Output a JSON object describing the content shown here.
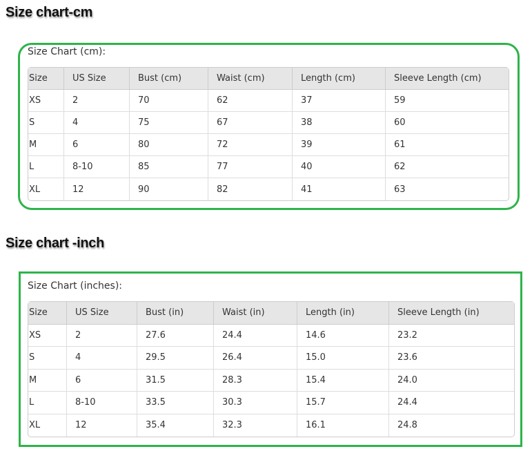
{
  "cm": {
    "heading": "Size chart-cm",
    "caption": "Size Chart (cm):",
    "headers": [
      "Size",
      "US Size",
      "Bust (cm)",
      "Waist (cm)",
      "Length (cm)",
      "Sleeve Length (cm)"
    ],
    "rows": [
      [
        "XS",
        "2",
        "70",
        "62",
        "37",
        "59"
      ],
      [
        "S",
        "4",
        "75",
        "67",
        "38",
        "60"
      ],
      [
        "M",
        "6",
        "80",
        "72",
        "39",
        "61"
      ],
      [
        "L",
        "8-10",
        "85",
        "77",
        "40",
        "62"
      ],
      [
        "XL",
        "12",
        "90",
        "82",
        "41",
        "63"
      ]
    ]
  },
  "inch": {
    "heading": "Size chart -inch",
    "caption": "Size Chart (inches):",
    "headers": [
      "Size",
      "US Size",
      "Bust (in)",
      "Waist (in)",
      "Length (in)",
      "Sleeve Length (in)"
    ],
    "rows": [
      [
        "XS",
        "2",
        "27.6",
        "24.4",
        "14.6",
        "23.2"
      ],
      [
        "S",
        "4",
        "29.5",
        "26.4",
        "15.0",
        "23.6"
      ],
      [
        "M",
        "6",
        "31.5",
        "28.3",
        "15.4",
        "24.0"
      ],
      [
        "L",
        "8-10",
        "33.5",
        "30.3",
        "15.7",
        "24.4"
      ],
      [
        "XL",
        "12",
        "35.4",
        "32.3",
        "16.1",
        "24.8"
      ]
    ]
  },
  "colors": {
    "border": "#2db44a",
    "header_bg": "#e6e6e6"
  }
}
